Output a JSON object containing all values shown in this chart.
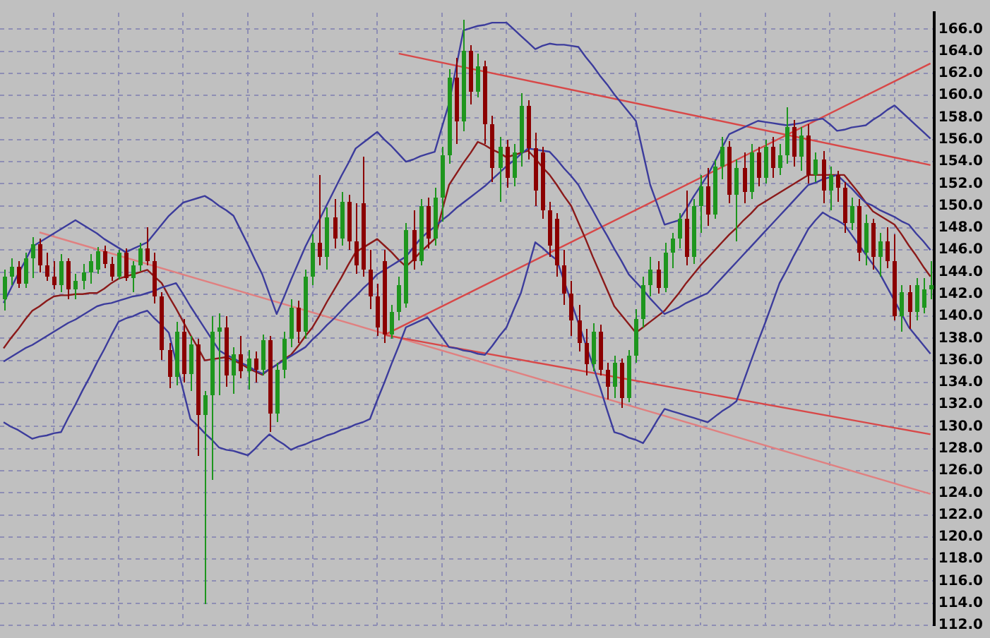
{
  "chart_data": {
    "type": "candlestick",
    "categories": [
      null,
      null,
      null,
      null,
      null,
      null,
      null,
      null,
      null,
      null,
      null,
      null,
      null,
      null,
      null,
      null,
      null,
      null,
      null,
      null,
      null,
      null,
      null,
      null,
      null,
      null,
      null,
      null,
      null,
      null,
      null,
      null,
      null,
      null,
      null,
      null,
      null,
      null,
      null,
      null,
      null,
      null,
      null,
      null,
      null,
      null,
      null,
      null,
      null,
      null,
      null,
      null,
      null,
      null,
      null,
      null,
      null,
      null,
      null,
      null,
      null,
      null,
      null,
      null,
      null,
      null,
      null,
      null,
      null,
      null,
      null,
      null,
      null,
      null,
      null,
      null,
      null,
      null,
      null,
      null,
      null,
      null,
      null,
      null,
      null,
      null,
      null,
      null,
      null,
      null,
      null,
      null,
      null,
      null,
      null,
      null,
      null,
      null,
      null,
      null,
      null,
      null,
      null,
      null,
      null,
      null,
      null,
      null,
      null,
      null,
      null,
      null,
      null,
      null,
      null,
      null,
      null,
      null,
      null,
      null,
      null,
      null,
      null,
      null,
      null,
      null,
      null,
      null,
      null,
      null
    ],
    "ohlc": [
      [
        141.5,
        144.2,
        140.5,
        143.6
      ],
      [
        143.6,
        145.2,
        142.8,
        144.5
      ],
      [
        144.5,
        145.0,
        142.6,
        143.0
      ],
      [
        143.0,
        145.8,
        142.5,
        145.3
      ],
      [
        145.3,
        147.2,
        143.5,
        146.5
      ],
      [
        146.5,
        147.0,
        144.0,
        144.6
      ],
      [
        144.6,
        145.8,
        143.2,
        143.6
      ],
      [
        143.6,
        145.0,
        142.4,
        142.8
      ],
      [
        142.8,
        145.6,
        142.2,
        145.0
      ],
      [
        145.0,
        145.3,
        141.6,
        142.4
      ],
      [
        142.4,
        143.8,
        141.6,
        143.2
      ],
      [
        143.2,
        144.8,
        142.4,
        144.0
      ],
      [
        144.0,
        145.6,
        143.0,
        145.0
      ],
      [
        144.2,
        146.3,
        143.9,
        145.9
      ],
      [
        145.9,
        146.4,
        144.4,
        144.8
      ],
      [
        144.8,
        145.4,
        143.2,
        143.6
      ],
      [
        143.6,
        146.0,
        143.3,
        145.7
      ],
      [
        145.7,
        146.2,
        143.2,
        143.5
      ],
      [
        143.5,
        145.0,
        142.2,
        144.6
      ],
      [
        144.6,
        146.6,
        144.1,
        146.2
      ],
      [
        146.2,
        148.0,
        144.6,
        145.0
      ],
      [
        145.0,
        145.8,
        141.2,
        141.8
      ],
      [
        141.8,
        142.2,
        136.0,
        137.0
      ],
      [
        137.0,
        137.6,
        133.5,
        134.5
      ],
      [
        134.5,
        139.5,
        133.8,
        138.6
      ],
      [
        138.6,
        139.8,
        134.0,
        134.8
      ],
      [
        134.8,
        138.2,
        133.2,
        137.4
      ],
      [
        137.4,
        138.0,
        127.4,
        131.0
      ],
      [
        131.0,
        133.2,
        113.9,
        132.8
      ],
      [
        132.8,
        140.0,
        125.2,
        138.6
      ],
      [
        138.6,
        140.2,
        132.8,
        139.0
      ],
      [
        139.0,
        140.0,
        133.6,
        134.6
      ],
      [
        134.6,
        137.2,
        133.0,
        136.6
      ],
      [
        136.6,
        138.2,
        134.4,
        135.0
      ],
      [
        135.0,
        137.0,
        133.4,
        136.2
      ],
      [
        136.2,
        136.8,
        134.0,
        135.2
      ],
      [
        135.2,
        138.4,
        134.6,
        137.8
      ],
      [
        137.8,
        138.2,
        129.5,
        131.2
      ],
      [
        131.2,
        135.8,
        130.4,
        135.2
      ],
      [
        135.2,
        138.6,
        134.4,
        138.0
      ],
      [
        138.0,
        141.6,
        137.2,
        140.8
      ],
      [
        140.8,
        141.4,
        137.6,
        138.6
      ],
      [
        138.6,
        144.2,
        138.0,
        143.6
      ],
      [
        143.6,
        147.4,
        142.8,
        146.6
      ],
      [
        146.6,
        152.8,
        144.6,
        145.4
      ],
      [
        145.4,
        149.8,
        144.2,
        149.0
      ],
      [
        149.0,
        150.6,
        146.2,
        147.0
      ],
      [
        147.0,
        151.2,
        146.4,
        150.4
      ],
      [
        150.4,
        151.0,
        146.0,
        146.8
      ],
      [
        146.8,
        150.2,
        143.8,
        144.6
      ],
      [
        150.2,
        154.4,
        143.6,
        144.2
      ],
      [
        144.2,
        146.0,
        140.6,
        141.8
      ],
      [
        141.8,
        143.0,
        138.2,
        139.0
      ],
      [
        145.0,
        146.0,
        137.6,
        138.4
      ],
      [
        138.4,
        141.0,
        137.9,
        140.4
      ],
      [
        140.4,
        143.6,
        139.6,
        142.8
      ],
      [
        141.2,
        148.4,
        140.8,
        147.8
      ],
      [
        147.8,
        149.6,
        144.2,
        145.0
      ],
      [
        145.0,
        150.6,
        144.6,
        150.0
      ],
      [
        150.0,
        150.8,
        146.2,
        147.0
      ],
      [
        147.0,
        151.6,
        146.4,
        150.8
      ],
      [
        150.8,
        155.4,
        148.6,
        154.6
      ],
      [
        154.6,
        162.4,
        153.8,
        161.6
      ],
      [
        161.6,
        163.4,
        155.6,
        157.6
      ],
      [
        157.6,
        166.9,
        156.8,
        164.0
      ],
      [
        164.0,
        164.6,
        159.2,
        160.4
      ],
      [
        160.4,
        163.8,
        159.8,
        162.6
      ],
      [
        162.6,
        163.2,
        155.6,
        157.4
      ],
      [
        157.4,
        158.2,
        152.2,
        153.4
      ],
      [
        153.4,
        156.2,
        150.4,
        155.4
      ],
      [
        155.4,
        156.0,
        151.6,
        152.6
      ],
      [
        152.6,
        155.6,
        151.8,
        154.8
      ],
      [
        154.8,
        160.2,
        153.6,
        159.0
      ],
      [
        159.0,
        159.6,
        154.2,
        155.2
      ],
      [
        155.2,
        156.6,
        150.0,
        151.4
      ],
      [
        154.8,
        155.4,
        148.8,
        149.6
      ],
      [
        149.6,
        150.4,
        145.4,
        146.4
      ],
      [
        148.8,
        149.4,
        143.6,
        144.6
      ],
      [
        144.6,
        146.0,
        141.0,
        142.0
      ],
      [
        142.0,
        143.2,
        138.2,
        139.6
      ],
      [
        139.6,
        141.0,
        136.8,
        137.6
      ],
      [
        137.6,
        138.8,
        134.6,
        135.6
      ],
      [
        135.6,
        139.4,
        135.0,
        138.6
      ],
      [
        138.6,
        139.2,
        134.6,
        135.2
      ],
      [
        135.2,
        135.8,
        132.4,
        133.6
      ],
      [
        133.6,
        136.4,
        132.6,
        135.8
      ],
      [
        135.8,
        136.2,
        131.7,
        132.6
      ],
      [
        132.6,
        137.0,
        132.2,
        136.4
      ],
      [
        136.4,
        140.6,
        135.8,
        139.8
      ],
      [
        139.8,
        143.6,
        139.0,
        142.8
      ],
      [
        142.8,
        145.4,
        141.8,
        144.2
      ],
      [
        144.2,
        145.0,
        142.0,
        142.6
      ],
      [
        142.6,
        146.6,
        142.2,
        145.8
      ],
      [
        145.8,
        147.6,
        144.4,
        147.0
      ],
      [
        147.0,
        149.4,
        146.2,
        148.8
      ],
      [
        148.8,
        151.4,
        144.6,
        145.4
      ],
      [
        145.4,
        150.6,
        144.8,
        150.0
      ],
      [
        150.0,
        152.8,
        147.6,
        151.8
      ],
      [
        151.8,
        153.4,
        148.2,
        149.2
      ],
      [
        149.2,
        154.2,
        148.8,
        153.6
      ],
      [
        153.6,
        156.2,
        152.4,
        155.4
      ],
      [
        155.4,
        155.8,
        150.2,
        151.0
      ],
      [
        151.0,
        154.2,
        146.8,
        153.4
      ],
      [
        153.4,
        154.8,
        150.2,
        151.2
      ],
      [
        151.2,
        155.6,
        150.6,
        154.8
      ],
      [
        154.8,
        155.4,
        151.8,
        152.6
      ],
      [
        152.6,
        156.0,
        152.0,
        155.4
      ],
      [
        155.4,
        156.2,
        152.6,
        153.4
      ],
      [
        153.4,
        155.6,
        152.8,
        154.6
      ],
      [
        154.6,
        158.9,
        153.8,
        157.2
      ],
      [
        157.2,
        157.8,
        153.6,
        154.4
      ],
      [
        154.4,
        157.2,
        153.2,
        156.4
      ],
      [
        156.4,
        157.4,
        152.0,
        152.8
      ],
      [
        152.8,
        154.8,
        152.2,
        154.2
      ],
      [
        154.2,
        155.0,
        150.2,
        151.4
      ],
      [
        151.4,
        153.6,
        149.6,
        152.8
      ],
      [
        152.8,
        153.2,
        150.4,
        151.6
      ],
      [
        151.6,
        152.2,
        147.6,
        148.4
      ],
      [
        148.4,
        150.8,
        147.8,
        150.0
      ],
      [
        150.0,
        150.6,
        145.0,
        145.8
      ],
      [
        145.8,
        149.2,
        144.6,
        148.4
      ],
      [
        148.4,
        148.8,
        144.2,
        145.4
      ],
      [
        145.4,
        147.6,
        143.6,
        146.8
      ],
      [
        146.8,
        148.0,
        144.4,
        145.0
      ],
      [
        145.0,
        147.4,
        139.6,
        140.0
      ],
      [
        140.0,
        142.8,
        138.6,
        142.2
      ],
      [
        142.2,
        142.8,
        138.8,
        140.4
      ],
      [
        140.4,
        143.4,
        139.6,
        142.8
      ],
      [
        140.8,
        143.4,
        140.2,
        142.4
      ],
      [
        142.4,
        145.0,
        141.6,
        142.8
      ]
    ],
    "colors": [
      "#1e961e",
      "#1e961e",
      "#8b0000",
      "#1e961e",
      "#1e961e",
      "#8b0000",
      "#8b0000",
      "#8b0000",
      "#1e961e",
      "#8b0000",
      "#1e961e",
      "#1e961e",
      "#1e961e",
      "#1e961e",
      "#8b0000",
      "#8b0000",
      "#1e961e",
      "#8b0000",
      "#1e961e",
      "#1e961e",
      "#8b0000",
      "#8b0000",
      "#8b0000",
      "#8b0000",
      "#1e961e",
      "#8b0000",
      "#1e961e",
      "#8b0000",
      "#1e961e",
      "#1e961e",
      "#1e961e",
      "#8b0000",
      "#1e961e",
      "#8b0000",
      "#1e961e",
      "#8b0000",
      "#1e961e",
      "#8b0000",
      "#1e961e",
      "#1e961e",
      "#1e961e",
      "#8b0000",
      "#1e961e",
      "#1e961e",
      "#8b0000",
      "#1e961e",
      "#8b0000",
      "#1e961e",
      "#8b0000",
      "#8b0000",
      "#8b0000",
      "#8b0000",
      "#8b0000",
      "#8b0000",
      "#1e961e",
      "#1e961e",
      "#1e961e",
      "#8b0000",
      "#1e961e",
      "#8b0000",
      "#1e961e",
      "#1e961e",
      "#1e961e",
      "#8b0000",
      "#1e961e",
      "#8b0000",
      "#1e961e",
      "#8b0000",
      "#8b0000",
      "#1e961e",
      "#8b0000",
      "#1e961e",
      "#1e961e",
      "#8b0000",
      "#8b0000",
      "#8b0000",
      "#8b0000",
      "#8b0000",
      "#8b0000",
      "#8b0000",
      "#8b0000",
      "#8b0000",
      "#1e961e",
      "#8b0000",
      "#8b0000",
      "#1e961e",
      "#8b0000",
      "#1e961e",
      "#1e961e",
      "#1e961e",
      "#1e961e",
      "#8b0000",
      "#1e961e",
      "#1e961e",
      "#1e961e",
      "#8b0000",
      "#1e961e",
      "#1e961e",
      "#8b0000",
      "#1e961e",
      "#1e961e",
      "#8b0000",
      "#1e961e",
      "#8b0000",
      "#1e961e",
      "#8b0000",
      "#1e961e",
      "#8b0000",
      "#1e961e",
      "#1e961e",
      "#8b0000",
      "#1e961e",
      "#8b0000",
      "#1e961e",
      "#8b0000",
      "#1e961e",
      "#8b0000",
      "#8b0000",
      "#1e961e",
      "#8b0000",
      "#1e961e",
      "#8b0000",
      "#1e961e",
      "#8b0000",
      "#8b0000",
      "#1e961e",
      "#8b0000",
      "#1e961e",
      "#1e961e",
      "#1e961e"
    ],
    "series": [
      {
        "type": "line",
        "color": "#3c3c9c",
        "values": [
          141.2,
          142.5,
          143.8,
          145.0,
          146.3,
          146.7,
          147.1,
          147.5,
          147.9,
          148.3,
          148.7,
          148.3,
          147.9,
          147.5,
          147.0,
          146.6,
          146.2,
          145.8,
          146.1,
          146.4,
          146.7,
          147.5,
          148.3,
          149.1,
          149.7,
          150.3,
          150.5,
          150.7,
          150.9,
          150.5,
          150.0,
          149.6,
          149.1,
          147.8,
          146.5,
          145.1,
          143.8,
          142.0,
          140.2,
          141.7,
          143.3,
          144.8,
          146.3,
          147.6,
          148.8,
          150.1,
          151.4,
          152.7,
          153.9,
          155.2,
          155.7,
          156.2,
          156.7,
          156.0,
          155.4,
          154.7,
          154.0,
          154.2,
          154.5,
          154.7,
          154.9,
          157.1,
          159.3,
          162.6,
          165.9,
          166.1,
          166.3,
          166.4,
          166.6,
          166.6,
          166.6,
          166.0,
          165.4,
          164.8,
          164.2,
          164.5,
          164.7,
          164.6,
          164.6,
          164.5,
          164.4,
          163.5,
          162.7,
          161.8,
          161.0,
          160.1,
          159.3,
          158.5,
          157.7,
          154.8,
          151.9,
          150.1,
          148.3,
          148.5,
          148.7,
          149.7,
          150.8,
          151.8,
          152.8,
          154.0,
          155.3,
          156.5,
          156.8,
          157.1,
          157.4,
          157.7,
          157.6,
          157.5,
          157.4,
          157.3,
          157.4,
          157.5,
          157.7,
          157.8,
          157.9,
          157.4,
          156.8,
          156.9,
          157.1,
          157.2,
          157.3,
          157.8,
          158.2,
          158.7,
          159.1,
          158.5,
          157.9,
          157.3,
          156.7,
          156.1
        ]
      },
      {
        "type": "line",
        "color": "#3c3c9c",
        "values": [
          135.9,
          136.3,
          136.7,
          137.1,
          137.4,
          137.8,
          138.2,
          138.6,
          139.0,
          139.4,
          139.7,
          140.1,
          140.5,
          140.9,
          141.1,
          141.2,
          141.4,
          141.6,
          141.8,
          141.9,
          142.1,
          142.3,
          142.6,
          142.8,
          143.0,
          142.0,
          140.9,
          139.9,
          138.9,
          137.9,
          136.9,
          136.5,
          136.2,
          135.8,
          135.5,
          135.1,
          134.8,
          135.2,
          135.6,
          136.0,
          136.4,
          136.8,
          137.2,
          137.9,
          138.5,
          139.2,
          139.8,
          140.5,
          141.2,
          141.8,
          142.5,
          143.1,
          143.8,
          144.2,
          144.6,
          145.0,
          145.4,
          146.2,
          147.0,
          147.6,
          148.1,
          148.7,
          149.2,
          149.8,
          150.3,
          150.8,
          151.3,
          151.8,
          152.4,
          153.0,
          153.6,
          154.1,
          154.7,
          155.2,
          155.1,
          155.0,
          154.9,
          154.2,
          153.4,
          152.7,
          151.9,
          150.7,
          149.6,
          148.4,
          147.3,
          146.1,
          145.0,
          143.8,
          143.1,
          142.4,
          141.6,
          140.9,
          140.2,
          140.5,
          140.8,
          141.2,
          141.5,
          141.8,
          142.1,
          142.8,
          143.5,
          144.2,
          144.9,
          145.6,
          146.3,
          147.0,
          147.7,
          148.4,
          149.1,
          149.8,
          150.5,
          151.2,
          151.9,
          152.1,
          152.4,
          152.6,
          152.8,
          152.2,
          151.6,
          150.9,
          150.3,
          150.0,
          149.6,
          149.3,
          149.0,
          148.6,
          148.3,
          147.5,
          146.8,
          146.0
        ]
      },
      {
        "type": "line",
        "color": "#3c3c9c",
        "values": [
          130.4,
          130.0,
          129.7,
          129.3,
          128.9,
          129.1,
          129.2,
          129.4,
          129.5,
          130.8,
          132.0,
          133.3,
          134.5,
          135.8,
          137.0,
          138.3,
          139.5,
          139.8,
          140.0,
          140.3,
          140.5,
          139.8,
          139.2,
          138.5,
          135.9,
          133.3,
          130.7,
          130.1,
          129.4,
          128.8,
          128.1,
          127.9,
          127.8,
          127.6,
          127.4,
          128.0,
          128.7,
          129.3,
          128.8,
          128.4,
          127.9,
          128.2,
          128.4,
          128.7,
          128.9,
          129.2,
          129.4,
          129.7,
          129.9,
          130.2,
          130.4,
          130.7,
          132.4,
          134.0,
          135.7,
          137.3,
          139.0,
          139.3,
          139.6,
          139.9,
          139.0,
          138.1,
          137.2,
          137.1,
          136.9,
          136.8,
          136.6,
          136.5,
          137.3,
          138.2,
          139.0,
          140.6,
          142.1,
          144.4,
          146.7,
          146.2,
          145.6,
          145.1,
          143.2,
          141.3,
          139.4,
          137.5,
          135.6,
          133.6,
          131.5,
          129.5,
          129.3,
          129.0,
          128.8,
          128.5,
          129.5,
          130.6,
          131.6,
          131.4,
          131.2,
          131.0,
          130.8,
          130.6,
          130.4,
          130.9,
          131.4,
          131.8,
          132.3,
          134.1,
          135.9,
          137.7,
          139.4,
          141.2,
          143.0,
          144.2,
          145.5,
          146.7,
          147.9,
          148.7,
          149.4,
          149.0,
          148.7,
          148.3,
          147.4,
          146.5,
          145.6,
          144.7,
          143.8,
          142.6,
          141.4,
          140.2,
          139.0,
          138.2,
          137.4,
          136.6
        ]
      },
      {
        "type": "line",
        "color": "#8b1a1a",
        "values": [
          137.1,
          138.0,
          138.8,
          139.7,
          140.5,
          140.9,
          141.4,
          141.8,
          141.9,
          141.9,
          142.0,
          142.0,
          142.1,
          142.1,
          142.5,
          143.0,
          143.4,
          143.6,
          143.8,
          144.0,
          144.2,
          143.6,
          143.0,
          141.8,
          140.7,
          139.5,
          138.3,
          137.2,
          136.0,
          136.1,
          136.2,
          136.3,
          136.0,
          135.7,
          135.3,
          135.0,
          134.7,
          135.2,
          135.6,
          136.1,
          136.5,
          137.3,
          138.2,
          139.0,
          140.1,
          141.3,
          142.4,
          143.5,
          144.7,
          145.8,
          146.2,
          146.6,
          147.0,
          146.4,
          145.8,
          145.1,
          144.5,
          145.1,
          145.8,
          146.4,
          147.0,
          149.5,
          151.9,
          152.9,
          153.9,
          154.8,
          155.8,
          155.5,
          155.1,
          154.8,
          154.4,
          154.6,
          154.8,
          155.0,
          154.3,
          153.5,
          152.8,
          151.9,
          150.9,
          150.0,
          148.5,
          147.0,
          145.4,
          143.9,
          142.4,
          140.9,
          140.1,
          139.3,
          138.5,
          139.0,
          139.5,
          140.0,
          140.5,
          141.3,
          142.1,
          143.0,
          143.8,
          144.6,
          145.3,
          146.0,
          146.7,
          147.4,
          148.0,
          148.7,
          149.3,
          150.0,
          150.4,
          150.8,
          151.2,
          151.6,
          152.0,
          152.4,
          152.8,
          152.8,
          152.8,
          152.8,
          152.8,
          152.8,
          152.0,
          151.2,
          150.3,
          149.5,
          149.1,
          148.7,
          148.3,
          147.4,
          146.4,
          145.5,
          144.5,
          143.6
        ]
      },
      {
        "type": "line",
        "color": "#d84848",
        "values": [
          null,
          null,
          null,
          null,
          null,
          null,
          null,
          null,
          null,
          null,
          null,
          null,
          null,
          null,
          null,
          null,
          null,
          null,
          null,
          null,
          null,
          null,
          null,
          null,
          null,
          null,
          null,
          null,
          null,
          null,
          null,
          null,
          null,
          null,
          null,
          null,
          null,
          null,
          null,
          null,
          null,
          null,
          null,
          null,
          null,
          null,
          null,
          null,
          null,
          null,
          null,
          null,
          null,
          null,
          null,
          163.8,
          null,
          null,
          null,
          null,
          null,
          null,
          null,
          null,
          null,
          null,
          null,
          null,
          null,
          null,
          null,
          null,
          null,
          null,
          null,
          null,
          null,
          null,
          null,
          null,
          null,
          null,
          null,
          null,
          null,
          null,
          null,
          null,
          null,
          null,
          null,
          null,
          null,
          null,
          null,
          null,
          null,
          null,
          null,
          null,
          null,
          null,
          null,
          null,
          null,
          null,
          null,
          null,
          null,
          null,
          null,
          null,
          null,
          null,
          null,
          null,
          null,
          null,
          null,
          null,
          null,
          null,
          null,
          null,
          null,
          null,
          null,
          null,
          null,
          153.7
        ]
      },
      {
        "type": "line",
        "color": "#d84848",
        "values": [
          null,
          null,
          null,
          null,
          null,
          null,
          null,
          null,
          null,
          null,
          null,
          null,
          null,
          null,
          null,
          null,
          null,
          null,
          null,
          null,
          null,
          null,
          null,
          null,
          null,
          null,
          null,
          null,
          null,
          null,
          null,
          null,
          null,
          null,
          null,
          null,
          null,
          null,
          null,
          null,
          null,
          null,
          null,
          null,
          null,
          null,
          null,
          null,
          null,
          null,
          null,
          null,
          null,
          138.3,
          null,
          null,
          null,
          null,
          null,
          null,
          null,
          null,
          null,
          null,
          null,
          null,
          null,
          null,
          null,
          null,
          null,
          null,
          null,
          null,
          null,
          null,
          null,
          null,
          null,
          null,
          null,
          null,
          null,
          null,
          null,
          null,
          null,
          null,
          null,
          null,
          null,
          null,
          null,
          null,
          null,
          null,
          null,
          null,
          null,
          null,
          null,
          null,
          null,
          null,
          null,
          null,
          null,
          null,
          null,
          null,
          null,
          null,
          null,
          null,
          null,
          null,
          null,
          null,
          null,
          null,
          null,
          null,
          null,
          null,
          null,
          null,
          null,
          null,
          null,
          162.9
        ]
      },
      {
        "type": "line",
        "color": "#d84848",
        "values": [
          null,
          null,
          null,
          null,
          null,
          null,
          null,
          null,
          null,
          null,
          null,
          null,
          null,
          null,
          null,
          null,
          null,
          null,
          null,
          null,
          null,
          null,
          null,
          null,
          null,
          null,
          null,
          null,
          null,
          null,
          null,
          null,
          null,
          null,
          null,
          null,
          null,
          null,
          null,
          null,
          null,
          null,
          null,
          null,
          null,
          null,
          null,
          null,
          null,
          null,
          null,
          null,
          null,
          138.3,
          null,
          null,
          null,
          null,
          null,
          null,
          null,
          null,
          null,
          null,
          null,
          null,
          null,
          null,
          null,
          null,
          null,
          null,
          null,
          null,
          null,
          null,
          null,
          null,
          null,
          null,
          null,
          null,
          null,
          null,
          null,
          null,
          null,
          null,
          null,
          null,
          null,
          null,
          null,
          null,
          null,
          null,
          null,
          null,
          null,
          null,
          null,
          null,
          null,
          null,
          null,
          null,
          null,
          null,
          null,
          null,
          null,
          null,
          null,
          null,
          null,
          null,
          null,
          null,
          null,
          null,
          null,
          null,
          null,
          null,
          null,
          null,
          null,
          null,
          null,
          129.3
        ]
      },
      {
        "type": "line",
        "color": "#e08080",
        "values": [
          null,
          null,
          null,
          null,
          null,
          147.6,
          null,
          null,
          null,
          null,
          null,
          null,
          null,
          null,
          null,
          null,
          null,
          null,
          null,
          null,
          null,
          null,
          null,
          null,
          null,
          null,
          null,
          null,
          null,
          null,
          null,
          null,
          null,
          null,
          null,
          null,
          null,
          null,
          null,
          null,
          null,
          null,
          null,
          null,
          null,
          null,
          null,
          null,
          null,
          null,
          null,
          null,
          null,
          null,
          null,
          null,
          null,
          null,
          null,
          null,
          null,
          null,
          null,
          null,
          null,
          null,
          null,
          null,
          null,
          null,
          null,
          null,
          null,
          null,
          null,
          null,
          null,
          null,
          null,
          null,
          null,
          null,
          null,
          null,
          null,
          null,
          null,
          null,
          null,
          null,
          null,
          null,
          null,
          null,
          null,
          null,
          null,
          null,
          null,
          null,
          null,
          null,
          null,
          null,
          null,
          null,
          null,
          null,
          null,
          null,
          null,
          null,
          null,
          null,
          null,
          null,
          null,
          null,
          null,
          null,
          null,
          null,
          null,
          null,
          null,
          null,
          null,
          null,
          null,
          123.9
        ]
      }
    ],
    "ylim": [
      112,
      167.5
    ],
    "yticks": [
      {
        "value": 112,
        "label": "112.0"
      },
      {
        "value": 114,
        "label": "114.0"
      },
      {
        "value": 116,
        "label": "116.0"
      },
      {
        "value": 118,
        "label": "118.0"
      },
      {
        "value": 120,
        "label": "120.0"
      },
      {
        "value": 122,
        "label": "122.0"
      },
      {
        "value": 124,
        "label": "124.0"
      },
      {
        "value": 126,
        "label": "126.0"
      },
      {
        "value": 128,
        "label": "128.0"
      },
      {
        "value": 130,
        "label": "130.0"
      },
      {
        "value": 132,
        "label": "132.0"
      },
      {
        "value": 134,
        "label": "134.0"
      },
      {
        "value": 136,
        "label": "136.0"
      },
      {
        "value": 138,
        "label": "138.0"
      },
      {
        "value": 140,
        "label": "140.0"
      },
      {
        "value": 142,
        "label": "142.0"
      },
      {
        "value": 144,
        "label": "144.0"
      },
      {
        "value": 146,
        "label": "146.0"
      },
      {
        "value": 148,
        "label": "148.0"
      },
      {
        "value": 150,
        "label": "150.0"
      },
      {
        "value": 152,
        "label": "152.0"
      },
      {
        "value": 154,
        "label": "154.0"
      },
      {
        "value": 156,
        "label": "156.0"
      },
      {
        "value": 158,
        "label": "158.0"
      },
      {
        "value": 160,
        "label": "160.0"
      },
      {
        "value": 162,
        "label": "162.0"
      },
      {
        "value": 164,
        "label": "164.0"
      },
      {
        "value": 166,
        "label": "166.0"
      }
    ],
    "grid": true,
    "tick_labels": "y"
  }
}
